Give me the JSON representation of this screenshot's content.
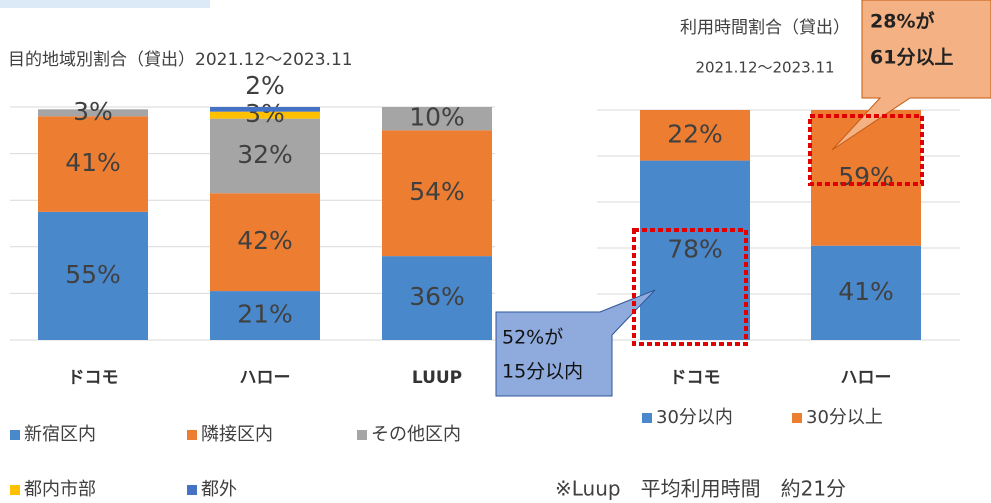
{
  "chart_data": [
    {
      "type": "bar",
      "stacked": true,
      "title": "目的地域別割合（貸出）2021.12～2023.11",
      "categories": [
        "ドコモ",
        "ハロー",
        "LUUP"
      ],
      "series": [
        {
          "name": "新宿区内",
          "color": "#4a88cc",
          "values": [
            55,
            21,
            36
          ],
          "value_labels": [
            "55%",
            "21%",
            "36%"
          ]
        },
        {
          "name": "隣接区内",
          "color": "#ed7d31",
          "values": [
            41,
            42,
            54
          ],
          "value_labels": [
            "41%",
            "42%",
            "54%"
          ]
        },
        {
          "name": "その他区内",
          "color": "#a5a5a5",
          "values": [
            3,
            32,
            10
          ],
          "value_labels": [
            "3%",
            "32%",
            "10%"
          ]
        },
        {
          "name": "都内市部",
          "color": "#ffc000",
          "values": [
            0,
            3,
            0
          ],
          "value_labels": [
            null,
            "3%",
            null
          ]
        },
        {
          "name": "都外",
          "color": "#4472c4",
          "values": [
            0,
            2,
            0
          ],
          "value_labels": [
            null,
            "2%",
            null
          ]
        }
      ],
      "ylim": [
        0,
        100
      ],
      "yticks": [
        0,
        20,
        40,
        60,
        80,
        100
      ],
      "grid": true
    },
    {
      "type": "bar",
      "stacked": true,
      "title": "利用時間割合（貸出）",
      "subtitle": "2021.12～2023.11",
      "categories": [
        "ドコモ",
        "ハロー"
      ],
      "series": [
        {
          "name": "30分以内",
          "color": "#4a88cc",
          "values": [
            78,
            41
          ],
          "value_labels": [
            "78%",
            "41%"
          ]
        },
        {
          "name": "30分以上",
          "color": "#ed7d31",
          "values": [
            22,
            59
          ],
          "value_labels": [
            "22%",
            "59%"
          ]
        }
      ],
      "ylim": [
        0,
        100
      ],
      "yticks": [
        0,
        20,
        40,
        60,
        80,
        100
      ],
      "grid": true,
      "annotations": [
        [
          "28%が",
          "61分以上"
        ],
        [
          "52%が",
          "15分以内"
        ]
      ],
      "note": "※Luup　平均利用時間　約21分"
    }
  ]
}
